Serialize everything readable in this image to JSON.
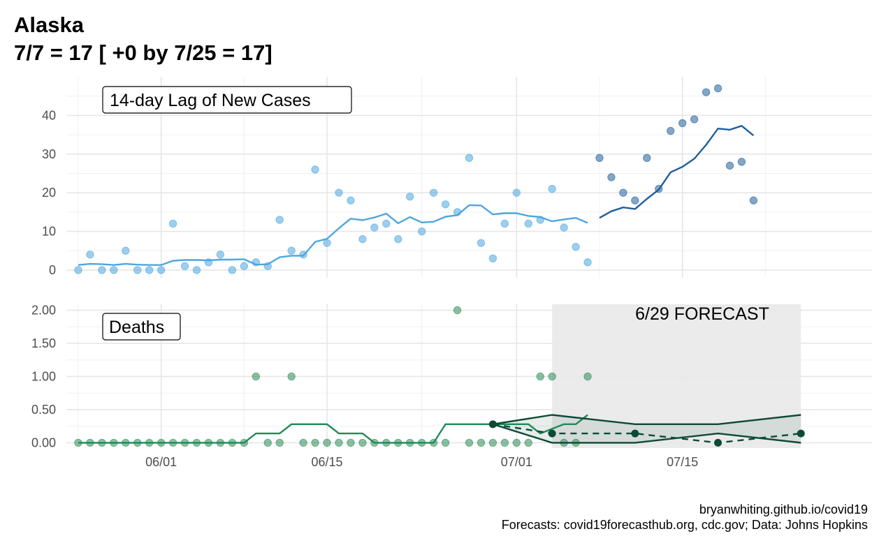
{
  "title": {
    "line1": "Alaska",
    "line2": "7/7 = 17 [ +0 by 7/25 = 17]"
  },
  "caption": {
    "line1": "bryanwhiting.github.io/covid19",
    "line2": "Forecasts: covid19forecasthub.org, cdc.gov; Data: Johns Hopkins"
  },
  "chart_data": [
    {
      "type": "line",
      "panel_label": "14-day Lag of New Cases",
      "x_type": "date",
      "x_ticks": [
        "2020-06-01",
        "2020-06-15",
        "2020-07-01",
        "2020-07-15"
      ],
      "x_tick_labels": [
        "06/01",
        "06/15",
        "07/01",
        "07/15"
      ],
      "xlim": [
        "2020-05-24",
        "2020-07-31"
      ],
      "ylim": [
        -2,
        50
      ],
      "y_ticks": [
        0,
        10,
        20,
        30,
        40
      ],
      "grid": true,
      "colors": {
        "lagged": "#4da6e0",
        "recent": "#1f5f99"
      },
      "series": [
        {
          "kind": "points",
          "style": "lagged",
          "x": [
            "2020-05-25",
            "2020-05-26",
            "2020-05-27",
            "2020-05-28",
            "2020-05-29",
            "2020-05-30",
            "2020-05-31",
            "2020-06-01",
            "2020-06-02",
            "2020-06-03",
            "2020-06-04",
            "2020-06-05",
            "2020-06-06",
            "2020-06-07",
            "2020-06-08",
            "2020-06-09",
            "2020-06-10",
            "2020-06-11",
            "2020-06-12",
            "2020-06-13",
            "2020-06-14",
            "2020-06-15",
            "2020-06-16",
            "2020-06-17",
            "2020-06-18",
            "2020-06-19",
            "2020-06-20",
            "2020-06-21",
            "2020-06-22",
            "2020-06-23",
            "2020-06-24",
            "2020-06-25",
            "2020-06-26",
            "2020-06-27",
            "2020-06-28",
            "2020-06-29",
            "2020-06-30",
            "2020-07-01",
            "2020-07-02",
            "2020-07-03",
            "2020-07-04",
            "2020-07-05",
            "2020-07-06",
            "2020-07-07"
          ],
          "y": [
            0,
            4,
            0,
            0,
            5,
            0,
            0,
            0,
            12,
            1,
            0,
            2,
            4,
            0,
            1,
            2,
            1,
            13,
            5,
            4,
            26,
            7,
            20,
            18,
            8,
            11,
            12,
            8,
            19,
            10,
            20,
            17,
            15,
            29,
            7,
            3,
            12,
            20,
            12,
            13,
            21,
            11,
            6,
            2
          ]
        },
        {
          "kind": "line",
          "style": "lagged",
          "x": [
            "2020-05-25",
            "2020-05-26",
            "2020-05-27",
            "2020-05-28",
            "2020-05-29",
            "2020-05-30",
            "2020-05-31",
            "2020-06-01",
            "2020-06-02",
            "2020-06-03",
            "2020-06-04",
            "2020-06-05",
            "2020-06-06",
            "2020-06-07",
            "2020-06-08",
            "2020-06-09",
            "2020-06-10",
            "2020-06-11",
            "2020-06-12",
            "2020-06-13",
            "2020-06-14",
            "2020-06-15",
            "2020-06-16",
            "2020-06-17",
            "2020-06-18",
            "2020-06-19",
            "2020-06-20",
            "2020-06-21",
            "2020-06-22",
            "2020-06-23",
            "2020-06-24",
            "2020-06-25",
            "2020-06-26",
            "2020-06-27",
            "2020-06-28",
            "2020-06-29",
            "2020-06-30",
            "2020-07-01",
            "2020-07-02",
            "2020-07-03",
            "2020-07-04",
            "2020-07-05",
            "2020-07-06",
            "2020-07-07"
          ],
          "y": [
            1.3,
            1.6,
            1.5,
            1.3,
            1.6,
            1.4,
            1.3,
            1.3,
            2.4,
            2.6,
            2.6,
            2.5,
            2.7,
            2.7,
            2.8,
            1.4,
            1.5,
            3.3,
            3.7,
            3.7,
            7.3,
            8.1,
            10.8,
            13.3,
            12.9,
            13.6,
            14.6,
            12.1,
            13.7,
            12.3,
            12.5,
            13.8,
            14.2,
            16.8,
            16.7,
            14.4,
            14.7,
            14.7,
            14.0,
            13.7,
            12.6,
            13.1,
            13.5,
            12.2
          ]
        },
        {
          "kind": "points",
          "style": "recent",
          "x": [
            "2020-07-08",
            "2020-07-09",
            "2020-07-10",
            "2020-07-11",
            "2020-07-12",
            "2020-07-13",
            "2020-07-14",
            "2020-07-15",
            "2020-07-16",
            "2020-07-17",
            "2020-07-18",
            "2020-07-19",
            "2020-07-20",
            "2020-07-21"
          ],
          "y": [
            29,
            24,
            20,
            18,
            29,
            21,
            36,
            38,
            39,
            46,
            47,
            27,
            28,
            18
          ]
        },
        {
          "kind": "line",
          "style": "recent",
          "x": [
            "2020-07-08",
            "2020-07-09",
            "2020-07-10",
            "2020-07-11",
            "2020-07-12",
            "2020-07-13",
            "2020-07-14",
            "2020-07-15",
            "2020-07-16",
            "2020-07-17",
            "2020-07-18",
            "2020-07-19",
            "2020-07-20",
            "2020-07-21"
          ],
          "y": [
            13.5,
            15.2,
            16.2,
            15.8,
            18.4,
            20.8,
            25.3,
            26.7,
            28.8,
            32.4,
            36.6,
            36.3,
            37.3,
            34.8
          ]
        }
      ]
    },
    {
      "type": "line",
      "panel_label": "Deaths",
      "annotation": "6/29 FORECAST",
      "x_type": "date",
      "x_ticks": [
        "2020-06-01",
        "2020-06-15",
        "2020-07-01",
        "2020-07-15"
      ],
      "x_tick_labels": [
        "06/01",
        "06/15",
        "07/01",
        "07/15"
      ],
      "xlim": [
        "2020-05-24",
        "2020-07-31"
      ],
      "ylim": [
        -0.08,
        2.1
      ],
      "y_ticks": [
        0,
        0.5,
        1.0,
        1.5,
        2.0
      ],
      "y_tick_labels": [
        "0.00",
        "0.50",
        "1.00",
        "1.50",
        "2.00"
      ],
      "grid": true,
      "forecast_window": [
        "2020-07-04",
        "2020-07-25"
      ],
      "colors": {
        "observed": "#2e8b57",
        "observed_line": "#1e8a55",
        "forecast": "#0d4a36",
        "shade": "#e9e9e9"
      },
      "series": [
        {
          "kind": "points",
          "style": "observed",
          "x": [
            "2020-05-25",
            "2020-05-26",
            "2020-05-27",
            "2020-05-28",
            "2020-05-29",
            "2020-05-30",
            "2020-05-31",
            "2020-06-01",
            "2020-06-02",
            "2020-06-03",
            "2020-06-04",
            "2020-06-05",
            "2020-06-06",
            "2020-06-07",
            "2020-06-08",
            "2020-06-09",
            "2020-06-10",
            "2020-06-11",
            "2020-06-12",
            "2020-06-13",
            "2020-06-14",
            "2020-06-15",
            "2020-06-16",
            "2020-06-17",
            "2020-06-18",
            "2020-06-19",
            "2020-06-20",
            "2020-06-21",
            "2020-06-22",
            "2020-06-23",
            "2020-06-24",
            "2020-06-25",
            "2020-06-26",
            "2020-06-27",
            "2020-06-28",
            "2020-06-29",
            "2020-06-30",
            "2020-07-01",
            "2020-07-02",
            "2020-07-03",
            "2020-07-04",
            "2020-07-05",
            "2020-07-06",
            "2020-07-07"
          ],
          "y": [
            0,
            0,
            0,
            0,
            0,
            0,
            0,
            0,
            0,
            0,
            0,
            0,
            0,
            0,
            0,
            1,
            0,
            0,
            1,
            0,
            0,
            0,
            0,
            0,
            0,
            0,
            0,
            0,
            0,
            0,
            0,
            0,
            2,
            0,
            0,
            0,
            0,
            0,
            0,
            1,
            1,
            0,
            0,
            1
          ]
        },
        {
          "kind": "line",
          "style": "observed_line",
          "x": [
            "2020-05-25",
            "2020-06-07",
            "2020-06-08",
            "2020-06-09",
            "2020-06-11",
            "2020-06-12",
            "2020-06-15",
            "2020-06-16",
            "2020-06-18",
            "2020-06-19",
            "2020-06-24",
            "2020-06-25",
            "2020-06-28",
            "2020-07-01",
            "2020-07-02",
            "2020-07-03",
            "2020-07-05",
            "2020-07-06",
            "2020-07-07"
          ],
          "y": [
            0,
            0,
            0,
            0.14,
            0.14,
            0.28,
            0.28,
            0.14,
            0.14,
            0,
            0,
            0.28,
            0.28,
            0.28,
            0.28,
            0.14,
            0.28,
            0.28,
            0.42
          ]
        },
        {
          "kind": "forecast_ribbon_upper",
          "style": "forecast",
          "x": [
            "2020-06-29",
            "2020-07-04",
            "2020-07-11",
            "2020-07-18",
            "2020-07-25"
          ],
          "y": [
            0.28,
            0.42,
            0.28,
            0.28,
            0.42
          ]
        },
        {
          "kind": "forecast_ribbon_lower",
          "style": "forecast",
          "x": [
            "2020-06-29",
            "2020-07-04",
            "2020-07-11",
            "2020-07-18",
            "2020-07-25"
          ],
          "y": [
            0.28,
            0,
            0,
            0.14,
            0
          ]
        },
        {
          "kind": "forecast_point",
          "style": "forecast",
          "x": [
            "2020-06-29",
            "2020-07-04",
            "2020-07-11",
            "2020-07-18",
            "2020-07-25"
          ],
          "y": [
            0.28,
            0.14,
            0.14,
            0,
            0.14
          ]
        }
      ]
    }
  ]
}
